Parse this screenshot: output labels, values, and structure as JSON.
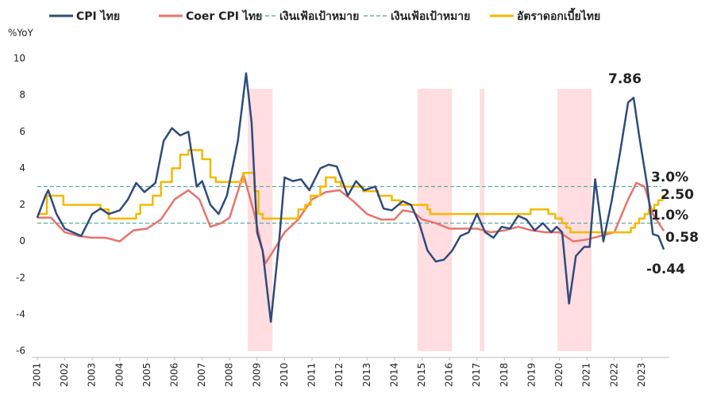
{
  "chart_data": {
    "type": "line",
    "y_axis_label": "%YoY",
    "xlim": [
      2000.8,
      2024.0
    ],
    "xticks": [
      2001,
      2002,
      2003,
      2004,
      2005,
      2006,
      2007,
      2008,
      2009,
      2010,
      2011,
      2012,
      2013,
      2014,
      2015,
      2016,
      2017,
      2018,
      2019,
      2020,
      2021,
      2022,
      2023
    ],
    "ylim": [
      -6,
      10
    ],
    "yticks": [
      -6,
      -4,
      -2,
      0,
      2,
      4,
      6,
      8,
      10
    ],
    "grid": false,
    "legend": "top",
    "shaded_ranges": [
      [
        2008.66,
        2009.56
      ],
      [
        2014.84,
        2016.09
      ],
      [
        2017.1,
        2017.27
      ],
      [
        2019.93,
        2021.17
      ]
    ],
    "shade_color": "#ffdde0",
    "series": [
      {
        "name": "CPI ไทย",
        "color": "#2f4b7c",
        "x": [
          2001.0,
          2001.3,
          2001.4,
          2001.7,
          2002.0,
          2002.3,
          2002.6,
          2003.0,
          2003.3,
          2003.6,
          2004.0,
          2004.3,
          2004.6,
          2004.9,
          2005.3,
          2005.6,
          2005.9,
          2006.2,
          2006.5,
          2006.8,
          2007.0,
          2007.3,
          2007.6,
          2007.9,
          2008.3,
          2008.6,
          2008.8,
          2009.0,
          2009.2,
          2009.5,
          2009.8,
          2010.0,
          2010.3,
          2010.6,
          2010.9,
          2011.3,
          2011.6,
          2011.9,
          2012.3,
          2012.6,
          2012.9,
          2013.3,
          2013.6,
          2013.9,
          2014.3,
          2014.6,
          2014.9,
          2015.2,
          2015.5,
          2015.8,
          2016.1,
          2016.4,
          2016.7,
          2017.0,
          2017.3,
          2017.6,
          2017.9,
          2018.2,
          2018.5,
          2018.8,
          2019.1,
          2019.4,
          2019.7,
          2019.9,
          2020.1,
          2020.35,
          2020.6,
          2020.9,
          2021.1,
          2021.3,
          2021.6,
          2021.9,
          2022.2,
          2022.5,
          2022.7,
          2022.9,
          2023.2,
          2023.4,
          2023.6,
          2023.8
        ],
        "values": [
          1.3,
          2.5,
          2.8,
          1.5,
          0.7,
          0.5,
          0.3,
          1.5,
          1.8,
          1.5,
          1.7,
          2.3,
          3.2,
          2.7,
          3.2,
          5.5,
          6.2,
          5.8,
          6.0,
          3.0,
          3.3,
          2.0,
          1.5,
          2.5,
          5.5,
          9.2,
          6.5,
          0.5,
          -0.5,
          -4.4,
          0.0,
          3.5,
          3.3,
          3.4,
          2.8,
          4.0,
          4.2,
          4.1,
          2.5,
          3.3,
          2.8,
          3.0,
          1.8,
          1.7,
          2.2,
          2.0,
          1.0,
          -0.5,
          -1.1,
          -1.0,
          -0.5,
          0.3,
          0.5,
          1.5,
          0.5,
          0.2,
          0.8,
          0.7,
          1.4,
          1.2,
          0.6,
          1.0,
          0.5,
          0.8,
          0.5,
          -3.4,
          -0.8,
          -0.3,
          -0.3,
          3.4,
          0.0,
          2.2,
          4.8,
          7.6,
          7.86,
          5.8,
          3.0,
          0.4,
          0.3,
          -0.44
        ]
      },
      {
        "name": "Coer CPI ไทย",
        "color": "#e8736c",
        "x": [
          2001.0,
          2001.5,
          2002.0,
          2002.5,
          2003.0,
          2003.5,
          2004.0,
          2004.5,
          2005.0,
          2005.5,
          2006.0,
          2006.5,
          2006.9,
          2007.3,
          2007.7,
          2008.0,
          2008.5,
          2008.9,
          2009.3,
          2009.6,
          2010.0,
          2010.5,
          2011.0,
          2011.5,
          2012.0,
          2012.5,
          2013.0,
          2013.5,
          2014.0,
          2014.3,
          2014.7,
          2015.0,
          2015.5,
          2016.0,
          2016.5,
          2017.0,
          2017.5,
          2018.0,
          2018.5,
          2019.0,
          2019.5,
          2020.0,
          2020.5,
          2021.0,
          2021.5,
          2022.0,
          2022.5,
          2022.8,
          2023.1,
          2023.4,
          2023.7,
          2023.8
        ],
        "values": [
          1.3,
          1.3,
          0.5,
          0.3,
          0.2,
          0.2,
          0.0,
          0.6,
          0.7,
          1.2,
          2.3,
          2.8,
          2.3,
          0.8,
          1.0,
          1.3,
          3.7,
          1.5,
          -1.2,
          -0.5,
          0.5,
          1.2,
          2.3,
          2.7,
          2.8,
          2.2,
          1.5,
          1.2,
          1.2,
          1.7,
          1.6,
          1.2,
          1.0,
          0.7,
          0.7,
          0.7,
          0.5,
          0.6,
          0.8,
          0.6,
          0.5,
          0.5,
          0.0,
          0.1,
          0.3,
          0.5,
          2.3,
          3.2,
          3.0,
          1.5,
          0.8,
          0.58
        ]
      },
      {
        "name": "เงินเฟ้อเป้าหมาย",
        "color": "#4aa89a",
        "dash": true,
        "x": [
          2001.0,
          2023.7
        ],
        "values": [
          3.0,
          3.0
        ]
      },
      {
        "name": "เงินเฟ้อเป้าหมาย",
        "color": "#4aa89a",
        "dash": true,
        "x": [
          2001.0,
          2023.7
        ],
        "values": [
          1.0,
          1.0
        ]
      },
      {
        "name": "อัตราดอกเบี้ยไทย",
        "color": "#f5b800",
        "x": [
          2001.0,
          2001.35,
          2001.35,
          2001.95,
          2001.95,
          2003.3,
          2003.3,
          2003.6,
          2003.6,
          2004.6,
          2004.6,
          2004.75,
          2004.75,
          2005.2,
          2005.2,
          2005.5,
          2005.5,
          2005.9,
          2005.9,
          2006.2,
          2006.2,
          2006.5,
          2006.5,
          2007.0,
          2007.0,
          2007.3,
          2007.3,
          2007.5,
          2007.5,
          2008.5,
          2008.5,
          2008.9,
          2008.9,
          2009.05,
          2009.05,
          2009.2,
          2009.2,
          2010.5,
          2010.5,
          2010.75,
          2010.75,
          2010.95,
          2010.95,
          2011.3,
          2011.3,
          2011.5,
          2011.5,
          2011.85,
          2011.85,
          2012.05,
          2012.05,
          2012.85,
          2012.85,
          2013.4,
          2013.4,
          2013.9,
          2013.9,
          2014.2,
          2014.2,
          2015.2,
          2015.2,
          2015.3,
          2015.3,
          2018.95,
          2018.95,
          2019.6,
          2019.6,
          2019.85,
          2019.85,
          2020.1,
          2020.1,
          2020.25,
          2020.25,
          2020.4,
          2020.4,
          2022.6,
          2022.6,
          2022.75,
          2022.75,
          2022.9,
          2022.9,
          2023.1,
          2023.1,
          2023.25,
          2023.25,
          2023.45,
          2023.45,
          2023.6,
          2023.6,
          2023.75,
          2023.75,
          2023.85
        ],
        "values": [
          1.5,
          1.5,
          2.5,
          2.5,
          2.0,
          2.0,
          1.75,
          1.75,
          1.25,
          1.25,
          1.5,
          1.5,
          2.0,
          2.0,
          2.5,
          2.5,
          3.25,
          3.25,
          4.0,
          4.0,
          4.75,
          4.75,
          5.0,
          5.0,
          4.5,
          4.5,
          3.5,
          3.5,
          3.25,
          3.25,
          3.75,
          3.75,
          2.75,
          2.75,
          1.5,
          1.5,
          1.25,
          1.25,
          1.75,
          1.75,
          2.0,
          2.0,
          2.5,
          2.5,
          3.0,
          3.0,
          3.5,
          3.5,
          3.25,
          3.25,
          3.0,
          3.0,
          2.75,
          2.75,
          2.5,
          2.5,
          2.25,
          2.25,
          2.0,
          2.0,
          1.75,
          1.75,
          1.5,
          1.5,
          1.75,
          1.75,
          1.5,
          1.5,
          1.25,
          1.25,
          1.0,
          1.0,
          0.75,
          0.75,
          0.5,
          0.5,
          0.75,
          0.75,
          1.0,
          1.0,
          1.25,
          1.25,
          1.5,
          1.5,
          1.75,
          1.75,
          2.0,
          2.0,
          2.25,
          2.25,
          2.5,
          2.5
        ]
      }
    ],
    "annotations": [
      {
        "text": "7.86",
        "color": "#2f4b7c"
      },
      {
        "text": "3.0%",
        "color": "#4aa89a"
      },
      {
        "text": "2.50",
        "color": "#f5b800"
      },
      {
        "text": "1.0%",
        "color": "#4aa89a"
      },
      {
        "text": "0.58",
        "color": "#e8736c"
      },
      {
        "text": "-0.44",
        "color": "#2f4b7c"
      }
    ]
  }
}
